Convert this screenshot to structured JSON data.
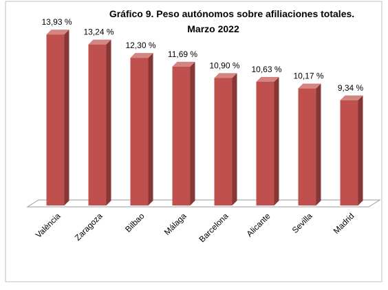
{
  "chart_data": {
    "type": "bar",
    "title": [
      "Gráfico 9. Peso autónomos sobre afiliaciones totales.",
      "Marzo 2022"
    ],
    "categories": [
      "València",
      "Zaragoza",
      "Bilbao",
      "Málaga",
      "Barcelona",
      "Alicante",
      "Sevilla",
      "Madrid"
    ],
    "values": [
      13.93,
      13.24,
      12.3,
      11.69,
      10.9,
      10.63,
      10.17,
      9.34
    ],
    "value_labels": [
      "13,93 %",
      "13,24 %",
      "12,30 %",
      "11,69 %",
      "10,90 %",
      "10,63 %",
      "10,17 %",
      "9,34 %"
    ],
    "color": "#c0504d",
    "ylim": [
      2,
      16
    ]
  }
}
